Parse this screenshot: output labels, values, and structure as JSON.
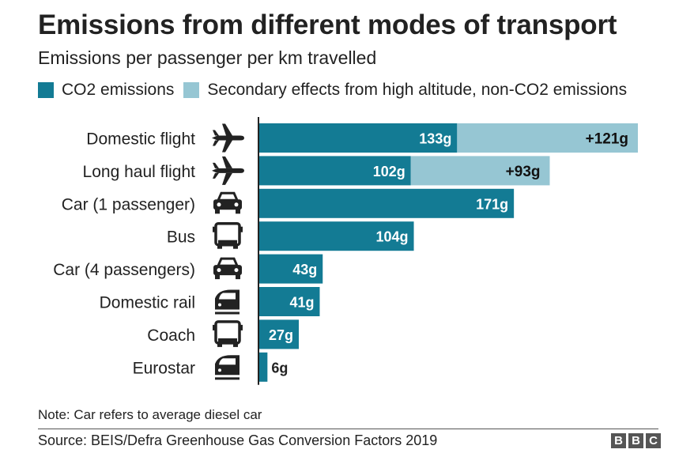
{
  "title": "Emissions from different modes of transport",
  "subtitle": "Emissions per passenger per km travelled",
  "legend": [
    {
      "label": "CO2 emissions",
      "color": "#137b94"
    },
    {
      "label": "Secondary effects from high altitude, non-CO2 emissions",
      "color": "#96c6d3"
    }
  ],
  "chart_data": {
    "type": "bar",
    "orientation": "horizontal",
    "stacked": true,
    "categories": [
      "Domestic flight",
      "Long haul flight",
      "Car (1 passenger)",
      "Bus",
      "Car (4 passengers)",
      "Domestic rail",
      "Coach",
      "Eurostar"
    ],
    "icons": [
      "plane-icon",
      "plane-icon",
      "car-icon",
      "bus-icon",
      "car-icon",
      "train-icon",
      "bus-icon",
      "train-icon"
    ],
    "series": [
      {
        "name": "CO2 emissions",
        "values": [
          133,
          102,
          171,
          104,
          43,
          41,
          27,
          6
        ],
        "labels": [
          "133g",
          "102g",
          "171g",
          "104g",
          "43g",
          "41g",
          "27g",
          "6g"
        ]
      },
      {
        "name": "Secondary effects from high altitude, non-CO2 emissions",
        "values": [
          121,
          93,
          0,
          0,
          0,
          0,
          0,
          0
        ],
        "labels": [
          "+121g",
          "+93g",
          "",
          "",
          "",
          "",
          "",
          ""
        ]
      }
    ],
    "xlim": [
      0,
      254
    ],
    "grid": false,
    "legend_position": "top"
  },
  "note": "Note: Car refers to average diesel car",
  "source": "Source: BEIS/Defra Greenhouse Gas Conversion Factors 2019",
  "logo": [
    "B",
    "B",
    "C"
  ]
}
